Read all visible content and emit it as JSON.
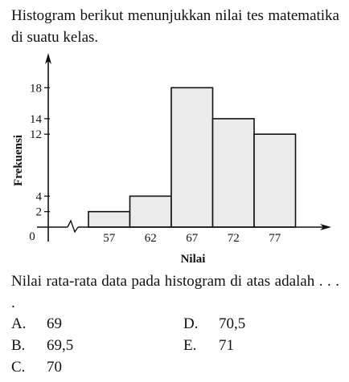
{
  "question": {
    "text": "Histogram berikut menunjukkan nilai tes matematika di suatu kelas."
  },
  "prompt": {
    "text": "Nilai rata-rata data pada histogram di atas adalah . . . ."
  },
  "options": [
    {
      "letter": "A.",
      "value": "69"
    },
    {
      "letter": "B.",
      "value": "69,5"
    },
    {
      "letter": "C.",
      "value": "70"
    },
    {
      "letter": "D.",
      "value": "70,5"
    },
    {
      "letter": "E.",
      "value": "71"
    }
  ],
  "chart_data": {
    "type": "bar",
    "histogram": true,
    "xlabel": "Nilai",
    "ylabel": "Frekuensi",
    "categories": [
      "57",
      "62",
      "67",
      "72",
      "77"
    ],
    "values": [
      2,
      4,
      18,
      14,
      12
    ],
    "ytick_labels": [
      "2",
      "4",
      "12",
      "14",
      "18"
    ],
    "origin_label": "0",
    "axis_break": true,
    "grid": false,
    "legend": "none",
    "colors": {
      "bar_fill": "#ebebeb",
      "stroke": "#111111"
    }
  }
}
